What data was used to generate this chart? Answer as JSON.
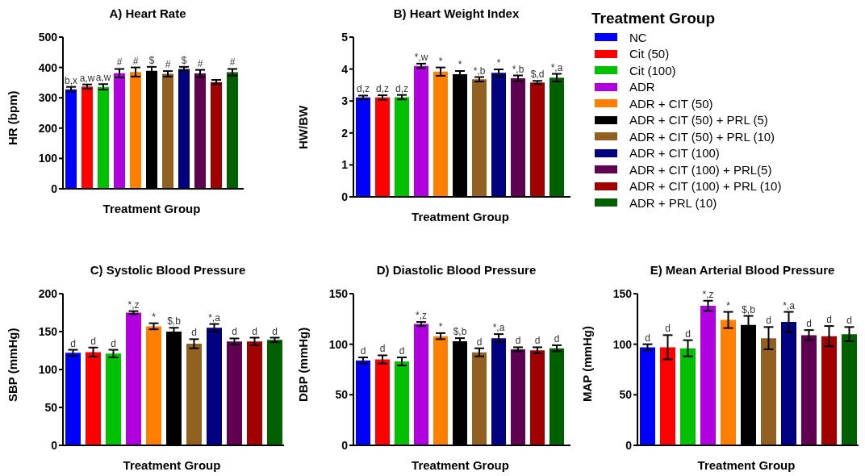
{
  "chart_data": [
    {
      "type": "bar",
      "title": "A) Heart Rate",
      "xlabel": "Treatment Group",
      "ylabel": "HR (bpm)",
      "categories": [
        null
      ],
      "ylim": [
        0,
        500
      ],
      "yticks": [
        0,
        100,
        200,
        300,
        400,
        500
      ],
      "tick_labels": "y",
      "grid": false,
      "series": [
        {
          "color": "#0000ff",
          "values": [
            328
          ],
          "errors": [
            8
          ],
          "value_labels": [
            "b,x"
          ]
        },
        {
          "color": "#ff0000",
          "values": [
            337
          ],
          "errors": [
            7
          ],
          "value_labels": [
            "a,w"
          ]
        },
        {
          "color": "#00c000",
          "values": [
            336
          ],
          "errors": [
            9
          ],
          "value_labels": [
            "a,w"
          ]
        },
        {
          "color": "#b000e0",
          "values": [
            381
          ],
          "errors": [
            14
          ],
          "value_labels": [
            "#"
          ]
        },
        {
          "color": "#ff8000",
          "values": [
            385
          ],
          "errors": [
            15
          ],
          "value_labels": [
            "#"
          ]
        },
        {
          "color": "#000000",
          "values": [
            389
          ],
          "errors": [
            13
          ],
          "value_labels": [
            "$"
          ]
        },
        {
          "color": "#926020",
          "values": [
            379
          ],
          "errors": [
            9
          ],
          "value_labels": [
            "#"
          ]
        },
        {
          "color": "#000080",
          "values": [
            395
          ],
          "errors": [
            7
          ],
          "value_labels": [
            "$"
          ]
        },
        {
          "color": "#600050",
          "values": [
            380
          ],
          "errors": [
            12
          ],
          "value_labels": [
            "#"
          ]
        },
        {
          "color": "#a00000",
          "values": [
            352
          ],
          "errors": [
            7
          ],
          "value_labels": [
            null
          ]
        },
        {
          "color": "#006000",
          "values": [
            384
          ],
          "errors": [
            11
          ],
          "value_labels": [
            "#"
          ]
        }
      ]
    },
    {
      "type": "bar",
      "title": "B) Heart Weight Index",
      "xlabel": "Treatment Group",
      "ylabel": "HW/BW",
      "legend": "right",
      "legend_title": "Treatment Group",
      "categories": [
        null
      ],
      "ylim": [
        0,
        5
      ],
      "yticks": [
        0,
        1,
        2,
        3,
        4,
        5
      ],
      "tick_labels": "y",
      "grid": false,
      "series": [
        {
          "name": "NC",
          "color": "#0000ff",
          "values": [
            3.11
          ],
          "errors": [
            0.06
          ],
          "value_labels": [
            "d,z"
          ]
        },
        {
          "name": "Cit (50)",
          "color": "#ff0000",
          "values": [
            3.11
          ],
          "errors": [
            0.07
          ],
          "value_labels": [
            "d,z"
          ]
        },
        {
          "name": "Cit (100)",
          "color": "#00c000",
          "values": [
            3.12
          ],
          "errors": [
            0.07
          ],
          "value_labels": [
            "d,z"
          ]
        },
        {
          "name": "ADR",
          "color": "#b000e0",
          "values": [
            4.1
          ],
          "errors": [
            0.07
          ],
          "value_labels": [
            "*,w"
          ]
        },
        {
          "name": "ADR + CIT (50)",
          "color": "#ff8000",
          "values": [
            3.92
          ],
          "errors": [
            0.13
          ],
          "value_labels": [
            "*"
          ]
        },
        {
          "name": "ADR + CIT (50) + PRL (5)",
          "color": "#000000",
          "values": [
            3.84
          ],
          "errors": [
            0.1
          ],
          "value_labels": [
            "*"
          ]
        },
        {
          "name": "ADR + CIT (50) + PRL (10)",
          "color": "#926020",
          "values": [
            3.68
          ],
          "errors": [
            0.07
          ],
          "value_labels": [
            "*,b"
          ]
        },
        {
          "name": "ADR + CIT (100)",
          "color": "#000080",
          "values": [
            3.88
          ],
          "errors": [
            0.11
          ],
          "value_labels": [
            "*"
          ]
        },
        {
          "name": "ADR + CIT (100) + PRL(5)",
          "color": "#600050",
          "values": [
            3.71
          ],
          "errors": [
            0.09
          ],
          "value_labels": [
            "*,b"
          ]
        },
        {
          "name": "ADR + CIT (100) + PRL (10)",
          "color": "#a00000",
          "values": [
            3.58
          ],
          "errors": [
            0.05
          ],
          "value_labels": [
            "$,d"
          ]
        },
        {
          "name": "ADR + PRL (10)",
          "color": "#006000",
          "values": [
            3.73
          ],
          "errors": [
            0.12
          ],
          "value_labels": [
            "*,a"
          ]
        }
      ]
    },
    {
      "type": "bar",
      "title": "C) Systolic Blood Pressure",
      "xlabel": "Treatment Group",
      "ylabel": "SBP (mmHg)",
      "categories": [
        null
      ],
      "ylim": [
        0,
        200
      ],
      "yticks": [
        0,
        50,
        100,
        150,
        200
      ],
      "tick_labels": "y",
      "grid": false,
      "series": [
        {
          "color": "#0000ff",
          "values": [
            122
          ],
          "errors": [
            4
          ],
          "value_labels": [
            "d"
          ]
        },
        {
          "color": "#ff0000",
          "values": [
            123
          ],
          "errors": [
            6
          ],
          "value_labels": [
            "d"
          ]
        },
        {
          "color": "#00c000",
          "values": [
            121
          ],
          "errors": [
            5
          ],
          "value_labels": [
            "d"
          ]
        },
        {
          "color": "#b000e0",
          "values": [
            175
          ],
          "errors": [
            2
          ],
          "value_labels": [
            "*,z"
          ]
        },
        {
          "color": "#ff8000",
          "values": [
            157
          ],
          "errors": [
            4
          ],
          "value_labels": [
            "*"
          ]
        },
        {
          "color": "#000000",
          "values": [
            150
          ],
          "errors": [
            5
          ],
          "value_labels": [
            "$,b"
          ]
        },
        {
          "color": "#926020",
          "values": [
            134
          ],
          "errors": [
            6
          ],
          "value_labels": [
            "d"
          ]
        },
        {
          "color": "#000080",
          "values": [
            155
          ],
          "errors": [
            5
          ],
          "value_labels": [
            "*,a"
          ]
        },
        {
          "color": "#600050",
          "values": [
            137
          ],
          "errors": [
            4
          ],
          "value_labels": [
            "d"
          ]
        },
        {
          "color": "#a00000",
          "values": [
            137
          ],
          "errors": [
            5
          ],
          "value_labels": [
            "d"
          ]
        },
        {
          "color": "#006000",
          "values": [
            139
          ],
          "errors": [
            3
          ],
          "value_labels": [
            "d"
          ]
        }
      ]
    },
    {
      "type": "bar",
      "title": "D) Diastolic Blood Pressure",
      "xlabel": "Treatment Group",
      "ylabel": "DBP (mmHg)",
      "categories": [
        null
      ],
      "ylim": [
        0,
        150
      ],
      "yticks": [
        0,
        50,
        100,
        150
      ],
      "tick_labels": "y",
      "grid": false,
      "series": [
        {
          "color": "#0000ff",
          "values": [
            84
          ],
          "errors": [
            3
          ],
          "value_labels": [
            "d"
          ]
        },
        {
          "color": "#ff0000",
          "values": [
            85
          ],
          "errors": [
            4
          ],
          "value_labels": [
            "d"
          ]
        },
        {
          "color": "#00c000",
          "values": [
            83
          ],
          "errors": [
            4
          ],
          "value_labels": [
            "d"
          ]
        },
        {
          "color": "#b000e0",
          "values": [
            120
          ],
          "errors": [
            2
          ],
          "value_labels": [
            "*,z"
          ]
        },
        {
          "color": "#ff8000",
          "values": [
            108
          ],
          "errors": [
            3
          ],
          "value_labels": [
            "*"
          ]
        },
        {
          "color": "#000000",
          "values": [
            103
          ],
          "errors": [
            3
          ],
          "value_labels": [
            "$,b"
          ]
        },
        {
          "color": "#926020",
          "values": [
            92
          ],
          "errors": [
            4
          ],
          "value_labels": [
            "d"
          ]
        },
        {
          "color": "#000080",
          "values": [
            106
          ],
          "errors": [
            4
          ],
          "value_labels": [
            "*,a"
          ]
        },
        {
          "color": "#600050",
          "values": [
            95
          ],
          "errors": [
            2
          ],
          "value_labels": [
            "d"
          ]
        },
        {
          "color": "#a00000",
          "values": [
            94
          ],
          "errors": [
            3
          ],
          "value_labels": [
            "d"
          ]
        },
        {
          "color": "#006000",
          "values": [
            96
          ],
          "errors": [
            3
          ],
          "value_labels": [
            "d"
          ]
        }
      ]
    },
    {
      "type": "bar",
      "title": "E) Mean Arterial Blood Pressure",
      "xlabel": "Treatment Group",
      "ylabel": "MAP (mmHg)",
      "categories": [
        null
      ],
      "ylim": [
        0,
        150
      ],
      "yticks": [
        0,
        50,
        100,
        150
      ],
      "tick_labels": "y",
      "grid": false,
      "series": [
        {
          "color": "#0000ff",
          "values": [
            97
          ],
          "errors": [
            3
          ],
          "value_labels": [
            "d"
          ]
        },
        {
          "color": "#ff0000",
          "values": [
            97
          ],
          "errors": [
            12
          ],
          "value_labels": [
            "d"
          ]
        },
        {
          "color": "#00c000",
          "values": [
            96
          ],
          "errors": [
            8
          ],
          "value_labels": [
            "d"
          ]
        },
        {
          "color": "#b000e0",
          "values": [
            138
          ],
          "errors": [
            5
          ],
          "value_labels": [
            "*,z"
          ]
        },
        {
          "color": "#ff8000",
          "values": [
            124
          ],
          "errors": [
            8
          ],
          "value_labels": [
            "*"
          ]
        },
        {
          "color": "#000000",
          "values": [
            119
          ],
          "errors": [
            9
          ],
          "value_labels": [
            "$,b"
          ]
        },
        {
          "color": "#926020",
          "values": [
            106
          ],
          "errors": [
            11
          ],
          "value_labels": [
            "d"
          ]
        },
        {
          "color": "#000080",
          "values": [
            122
          ],
          "errors": [
            10
          ],
          "value_labels": [
            "*,a"
          ]
        },
        {
          "color": "#600050",
          "values": [
            109
          ],
          "errors": [
            5
          ],
          "value_labels": [
            "d"
          ]
        },
        {
          "color": "#a00000",
          "values": [
            108
          ],
          "errors": [
            10
          ],
          "value_labels": [
            "d"
          ]
        },
        {
          "color": "#006000",
          "values": [
            110
          ],
          "errors": [
            7
          ],
          "value_labels": [
            "d"
          ]
        }
      ]
    }
  ]
}
